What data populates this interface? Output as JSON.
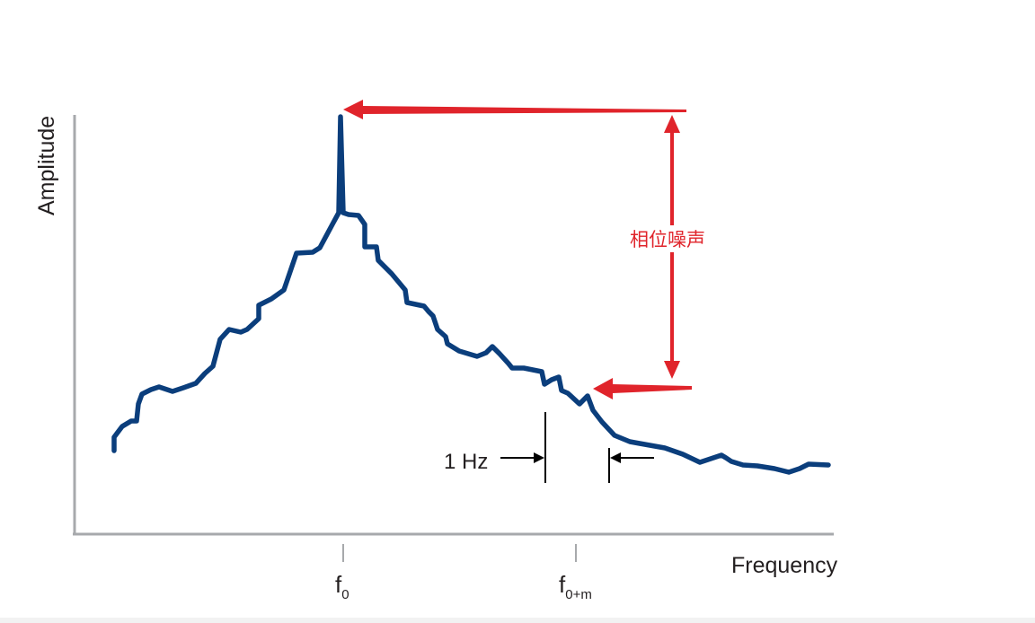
{
  "diagram": {
    "y_axis_label": "Amplitude",
    "x_axis_label": "Frequency",
    "ticks": [
      {
        "main": "f",
        "sub": "0"
      },
      {
        "main": "f",
        "sub": "0+m"
      }
    ],
    "bandwidth_label": "1 Hz",
    "annotation": "相位噪声",
    "colors": {
      "curve": "#0b3e7c",
      "annotation": "#e0242b",
      "axis": "#a7a9ac",
      "text": "#231f20"
    }
  }
}
